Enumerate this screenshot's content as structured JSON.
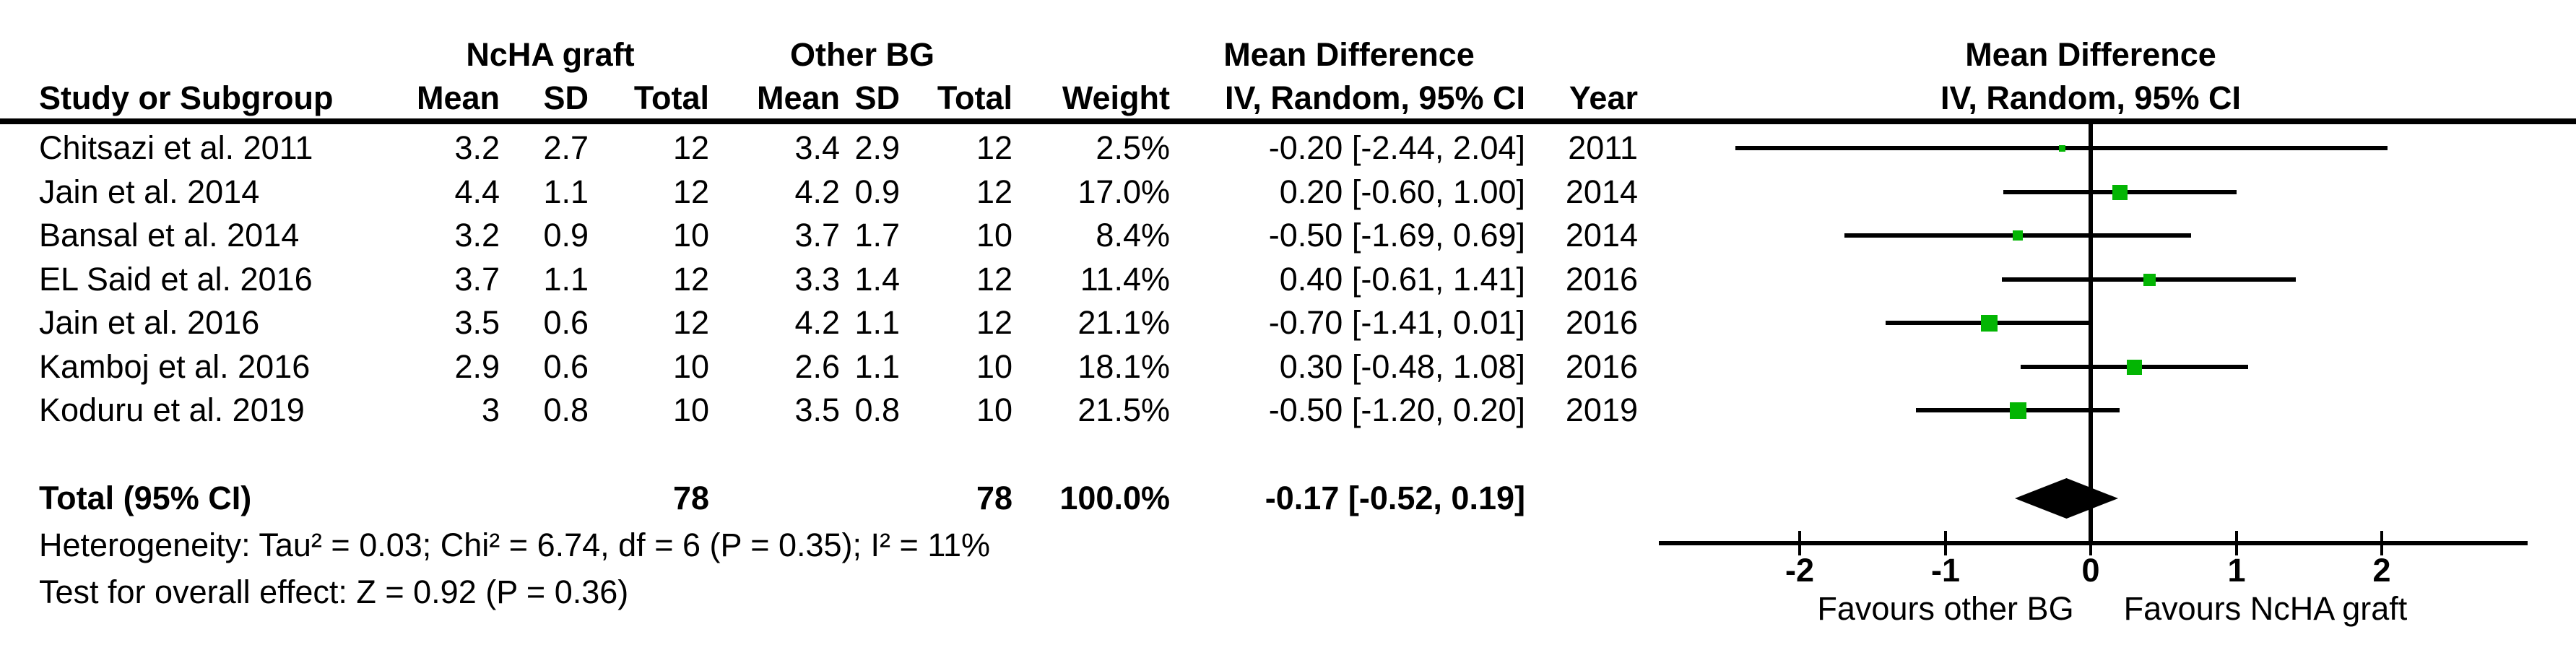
{
  "header": {
    "study_col": "Study or Subgroup",
    "group1": "NcHA graft",
    "group2": "Other BG",
    "md_col_title": "Mean Difference",
    "mean": "Mean",
    "sd": "SD",
    "total": "Total",
    "weight": "Weight",
    "ci_header": "IV, Random, 95% CI",
    "year_col": "Year",
    "plot_title": "Mean Difference",
    "plot_subtitle": "IV, Random, 95% CI"
  },
  "footer": {
    "heterogeneity": "Heterogeneity: Tau² = 0.03; Chi² = 6.74, df = 6 (P = 0.35); I² = 11%",
    "overall_effect": "Test for overall effect: Z = 0.92 (P = 0.36)"
  },
  "chart_data": {
    "type": "forest",
    "effect_measure": "Mean Difference",
    "model": "IV, Random, 95% CI",
    "marker_color": "#03b503",
    "line_color": "#000000",
    "x_ticks": [
      -2,
      -1,
      0,
      1,
      2
    ],
    "x_drawn_range": [
      -2.97,
      3.0
    ],
    "favours_left": "Favours other BG",
    "favours_right": "Favours NcHA graft",
    "studies": [
      {
        "name": "Chitsazi et al. 2011",
        "ncha_mean": "3.2",
        "ncha_sd": "2.7",
        "ncha_total": "12",
        "bg_mean": "3.4",
        "bg_sd": "2.9",
        "bg_total": "12",
        "weight": "2.5%",
        "md_ci": "-0.20 [-2.44, 2.04]",
        "year": "2011",
        "md": -0.2,
        "ci_lo": -2.44,
        "ci_hi": 2.04,
        "weight_pct": 2.5
      },
      {
        "name": "Jain et al. 2014",
        "ncha_mean": "4.4",
        "ncha_sd": "1.1",
        "ncha_total": "12",
        "bg_mean": "4.2",
        "bg_sd": "0.9",
        "bg_total": "12",
        "weight": "17.0%",
        "md_ci": "0.20 [-0.60, 1.00]",
        "year": "2014",
        "md": 0.2,
        "ci_lo": -0.6,
        "ci_hi": 1.0,
        "weight_pct": 17.0
      },
      {
        "name": "Bansal et al. 2014",
        "ncha_mean": "3.2",
        "ncha_sd": "0.9",
        "ncha_total": "10",
        "bg_mean": "3.7",
        "bg_sd": "1.7",
        "bg_total": "10",
        "weight": "8.4%",
        "md_ci": "-0.50 [-1.69, 0.69]",
        "year": "2014",
        "md": -0.5,
        "ci_lo": -1.69,
        "ci_hi": 0.69,
        "weight_pct": 8.4
      },
      {
        "name": "EL Said et al. 2016",
        "ncha_mean": "3.7",
        "ncha_sd": "1.1",
        "ncha_total": "12",
        "bg_mean": "3.3",
        "bg_sd": "1.4",
        "bg_total": "12",
        "weight": "11.4%",
        "md_ci": "0.40 [-0.61, 1.41]",
        "year": "2016",
        "md": 0.4,
        "ci_lo": -0.61,
        "ci_hi": 1.41,
        "weight_pct": 11.4
      },
      {
        "name": "Jain et al. 2016",
        "ncha_mean": "3.5",
        "ncha_sd": "0.6",
        "ncha_total": "12",
        "bg_mean": "4.2",
        "bg_sd": "1.1",
        "bg_total": "12",
        "weight": "21.1%",
        "md_ci": "-0.70 [-1.41, 0.01]",
        "year": "2016",
        "md": -0.7,
        "ci_lo": -1.41,
        "ci_hi": 0.01,
        "weight_pct": 21.1
      },
      {
        "name": "Kamboj et al. 2016",
        "ncha_mean": "2.9",
        "ncha_sd": "0.6",
        "ncha_total": "10",
        "bg_mean": "2.6",
        "bg_sd": "1.1",
        "bg_total": "10",
        "weight": "18.1%",
        "md_ci": "0.30 [-0.48, 1.08]",
        "year": "2016",
        "md": 0.3,
        "ci_lo": -0.48,
        "ci_hi": 1.08,
        "weight_pct": 18.1
      },
      {
        "name": "Koduru et al. 2019",
        "ncha_mean": "3",
        "ncha_sd": "0.8",
        "ncha_total": "10",
        "bg_mean": "3.5",
        "bg_sd": "0.8",
        "bg_total": "10",
        "weight": "21.5%",
        "md_ci": "-0.50 [-1.20, 0.20]",
        "year": "2019",
        "md": -0.5,
        "ci_lo": -1.2,
        "ci_hi": 0.2,
        "weight_pct": 21.5
      }
    ],
    "total": {
      "label": "Total (95% CI)",
      "ncha_total": "78",
      "bg_total": "78",
      "weight": "100.0%",
      "md_ci": "-0.17 [-0.52, 0.19]",
      "md": -0.17,
      "ci_lo": -0.52,
      "ci_hi": 0.19
    }
  }
}
